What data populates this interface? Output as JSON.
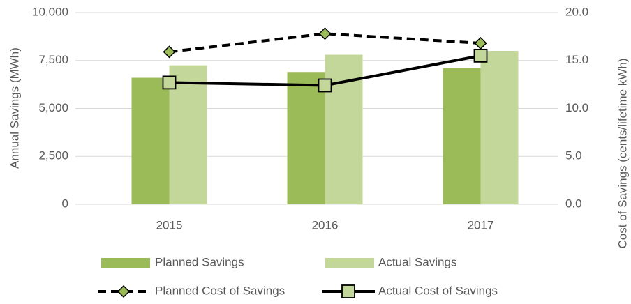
{
  "chart_data": {
    "type": "bar",
    "categories": [
      "2015",
      "2016",
      "2017"
    ],
    "y_label": "Annual Savings (MWh)",
    "y2_label": "Cost of Savings (cents/lifetime kWh)",
    "ylim": [
      0,
      10000
    ],
    "yticks": [
      0,
      {
        "value": 2500,
        "label": "2,500"
      },
      {
        "value": 5000,
        "label": "5,000"
      },
      {
        "value": 7500,
        "label": "7,500"
      },
      {
        "value": 10000,
        "label": "10,000"
      }
    ],
    "y2lim": [
      0,
      20
    ],
    "y2ticks": [
      {
        "value": 0,
        "label": "0.0"
      },
      {
        "value": 5,
        "label": "5.0"
      },
      {
        "value": 10,
        "label": "10.0"
      },
      {
        "value": 15,
        "label": "15.0"
      },
      {
        "value": 20,
        "label": "20.0"
      }
    ],
    "grid": true,
    "legend": "bottom",
    "series": [
      {
        "name": "Planned Savings",
        "type": "bar",
        "color": "#9bbb59",
        "values": [
          6600,
          6900,
          7100
        ]
      },
      {
        "name": "Actual Savings",
        "type": "bar",
        "color": "#c4d79b",
        "values": [
          7250,
          7800,
          8000
        ]
      },
      {
        "name": "Planned Cost of Savings",
        "type": "line",
        "axis": "y2",
        "dash": true,
        "marker": "diamond",
        "color": "#000000",
        "marker_color": "#9bbb59",
        "values": [
          15.9,
          17.8,
          16.8
        ]
      },
      {
        "name": "Actual Cost of Savings",
        "type": "line",
        "axis": "y2",
        "dash": false,
        "marker": "square",
        "color": "#000000",
        "marker_color": "#c4d79b",
        "values": [
          12.7,
          12.4,
          15.5
        ]
      }
    ]
  }
}
